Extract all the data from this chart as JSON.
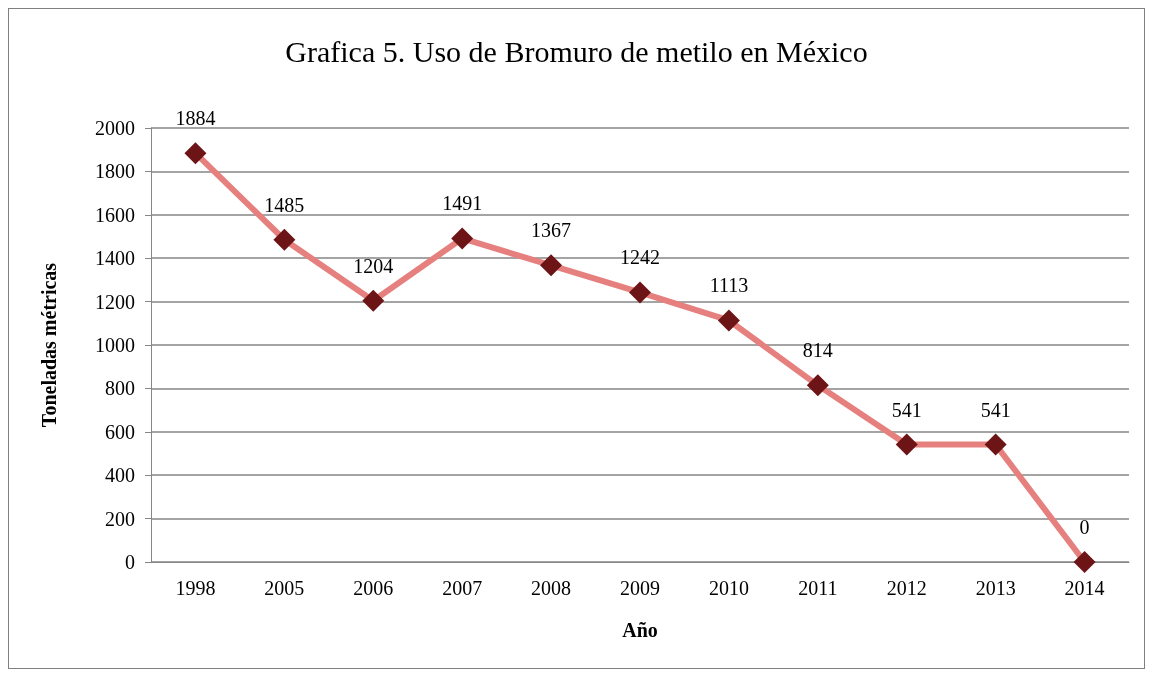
{
  "chart_data": {
    "type": "line",
    "title": "Grafica 5. Uso de Bromuro de metilo en México",
    "xlabel": "Año",
    "ylabel": "Toneladas métricas",
    "categories": [
      "1998",
      "2005",
      "2006",
      "2007",
      "2008",
      "2009",
      "2010",
      "2011",
      "2012",
      "2013",
      "2014"
    ],
    "series": [
      {
        "color": "#e6807f",
        "values": [
          1884,
          1485,
          1204,
          1491,
          1367,
          1242,
          1113,
          814,
          541,
          541,
          0
        ]
      }
    ],
    "ylim": [
      0,
      2000
    ],
    "yticks": [
      0,
      200,
      400,
      600,
      800,
      1000,
      1200,
      1400,
      1600,
      1800,
      2000
    ],
    "grid": "y",
    "marker": "diamond",
    "line_style": "solid",
    "data_labels": true
  }
}
